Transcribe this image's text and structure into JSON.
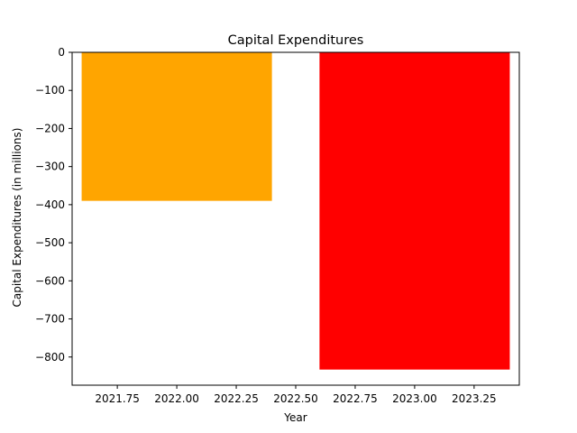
{
  "chart_data": {
    "type": "bar",
    "title": "Capital Expenditures",
    "xlabel": "Year",
    "ylabel": "Capital Expenditures (in millions)",
    "x": [
      2022,
      2023
    ],
    "values": [
      -390,
      -833
    ],
    "bar_width": 0.8,
    "bar_colors": [
      "#ffa500",
      "#ff0000"
    ],
    "xlim": [
      2021.56,
      2023.44
    ],
    "ylim": [
      -874,
      0
    ],
    "xticks": [
      2021.75,
      2022.0,
      2022.25,
      2022.5,
      2022.75,
      2023.0,
      2023.25
    ],
    "xtick_labels": [
      "2021.75",
      "2022.00",
      "2022.25",
      "2022.50",
      "2022.75",
      "2023.00",
      "2023.25"
    ],
    "yticks": [
      0,
      -100,
      -200,
      -300,
      -400,
      -500,
      -600,
      -700,
      -800
    ],
    "ytick_labels": [
      "0",
      "−100",
      "−200",
      "−300",
      "−400",
      "−500",
      "−600",
      "−700",
      "−800"
    ],
    "grid": false,
    "legend": "none"
  }
}
